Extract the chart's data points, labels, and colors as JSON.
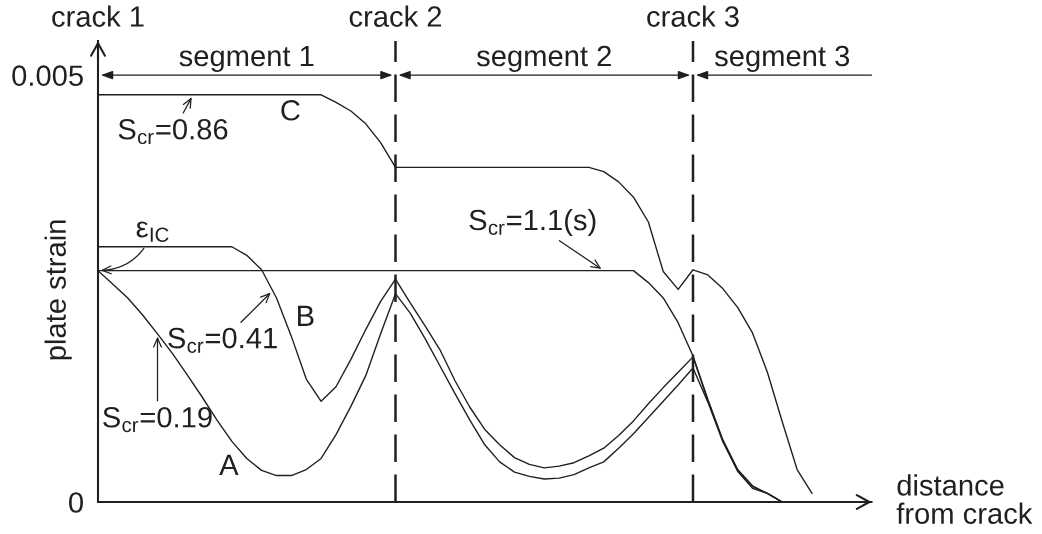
{
  "chart_data": {
    "type": "line",
    "xlabel": "distance\nfrom crack",
    "ylabel": "plate strain",
    "categories": [
      "crack 1",
      null,
      null,
      null,
      null,
      null,
      null,
      null,
      null,
      null,
      null,
      null,
      null,
      null,
      null,
      null,
      null,
      null,
      null,
      null,
      "crack 2",
      null,
      null,
      null,
      null,
      null,
      null,
      null,
      null,
      null,
      null,
      null,
      null,
      null,
      null,
      null,
      null,
      null,
      null,
      null,
      "crack 3",
      null,
      null,
      null,
      null,
      null,
      null,
      null,
      null,
      null,
      null,
      null,
      null
    ],
    "ylim": [
      0,
      0.0054
    ],
    "yticks": [
      0,
      0.005
    ],
    "series": [
      {
        "name": "A",
        "color": "#231f20",
        "values": [
          0.00271,
          0.00255,
          0.00239,
          0.00219,
          0.00197,
          0.00174,
          0.00149,
          0.00123,
          0.00096,
          0.00071,
          0.00051,
          0.00037,
          0.00031,
          0.00031,
          0.00038,
          0.00051,
          0.00079,
          0.00112,
          0.00148,
          0.00197,
          0.00244,
          0.00221,
          0.00191,
          0.00159,
          0.00127,
          0.00096,
          0.00067,
          0.00047,
          0.00035,
          0.0003,
          0.00027,
          0.00028,
          0.00032,
          0.0004,
          0.00047,
          0.00063,
          0.0008,
          0.00099,
          0.00118,
          0.00137,
          0.00157,
          0.00117,
          0.00071,
          0.00036,
          0.00016,
          0.0001,
          0,
          null,
          null,
          null,
          null,
          null,
          null
        ]
      },
      {
        "name": "B",
        "color": "#231f20",
        "values": [
          0.00299,
          0.00299,
          0.00299,
          0.00299,
          0.00299,
          0.00299,
          0.00299,
          0.00299,
          0.00299,
          0.00299,
          0.00289,
          0.00272,
          0.00239,
          0.00194,
          0.00144,
          0.00118,
          0.00135,
          0.00167,
          0.00202,
          0.00235,
          0.00261,
          0.00233,
          0.00206,
          0.00178,
          0.00142,
          0.00111,
          0.00085,
          0.00067,
          0.00052,
          0.00044,
          0.0004,
          0.00042,
          0.00046,
          0.00054,
          0.00063,
          0.00078,
          0.00095,
          0.00115,
          0.00134,
          0.00152,
          0.0017,
          0.00119,
          0.00072,
          0.00037,
          0.00018,
          0.0001,
          0,
          null,
          null,
          null,
          null,
          null,
          null
        ]
      },
      {
        "name": "C",
        "color": "#231f20",
        "values": [
          0.00477,
          0.00477,
          0.00477,
          0.00477,
          0.00477,
          0.00477,
          0.00477,
          0.00477,
          0.00477,
          0.00477,
          0.00477,
          0.00477,
          0.00477,
          0.00477,
          0.00477,
          0.00477,
          0.00468,
          0.00458,
          0.00443,
          0.00421,
          0.00392,
          0.00392,
          0.00392,
          0.00392,
          0.00392,
          0.00392,
          0.00392,
          0.00392,
          0.00392,
          0.00392,
          0.00392,
          0.00392,
          0.00392,
          0.00392,
          0.00387,
          0.00375,
          0.00357,
          0.00328,
          0.0027,
          0.00249,
          0.00272,
          0.00266,
          0.0025,
          0.00228,
          0.00198,
          0.00152,
          0.00094,
          0.00038,
          0.0001,
          null,
          null,
          null,
          null
        ]
      },
      {
        "color": "#231f20",
        "values": [
          0.00271,
          0.00271,
          0.00271,
          0.00271,
          0.00271,
          0.00271,
          0.00271,
          0.00271,
          0.00271,
          0.00271,
          0.00271,
          0.00271,
          0.00271,
          0.00271,
          0.00271,
          0.00271,
          0.00271,
          0.00271,
          0.00271,
          0.00271,
          0.00271,
          0.00271,
          0.00271,
          0.00271,
          0.00271,
          0.00271,
          0.00271,
          0.00271,
          0.00271,
          0.00271,
          0.00271,
          0.00271,
          0.00271,
          0.00271,
          0.00271,
          0.00271,
          0.00271,
          0.00257,
          0.00239,
          0.0021,
          0.00171,
          0.0012,
          0.00073,
          0.00038,
          0.00019,
          0.0001,
          0,
          null,
          null,
          null,
          null,
          null,
          null
        ]
      }
    ],
    "ref_lines": [
      {
        "axis": "x",
        "value": "crack 2",
        "color": "#231f20",
        "line_style": "dashed"
      },
      {
        "axis": "x",
        "value": "crack 3",
        "color": "#231f20",
        "line_style": "dashed"
      }
    ],
    "annotations": [
      "segment 1",
      "segment 2",
      "segment 3",
      {
        "text": "S$_{cr}$=0.86",
        "y": 0.00477
      },
      "S$_{cr}$=0.41",
      {
        "text": "S$_{cr}$=0.19",
        "y": 0.00197
      },
      {
        "text": "S$_{cr}$=1.1(s)",
        "y": 0.00271
      },
      {
        "text": "ε$_{IC}$",
        "x": "crack 1",
        "y": 0.00271
      }
    ]
  }
}
